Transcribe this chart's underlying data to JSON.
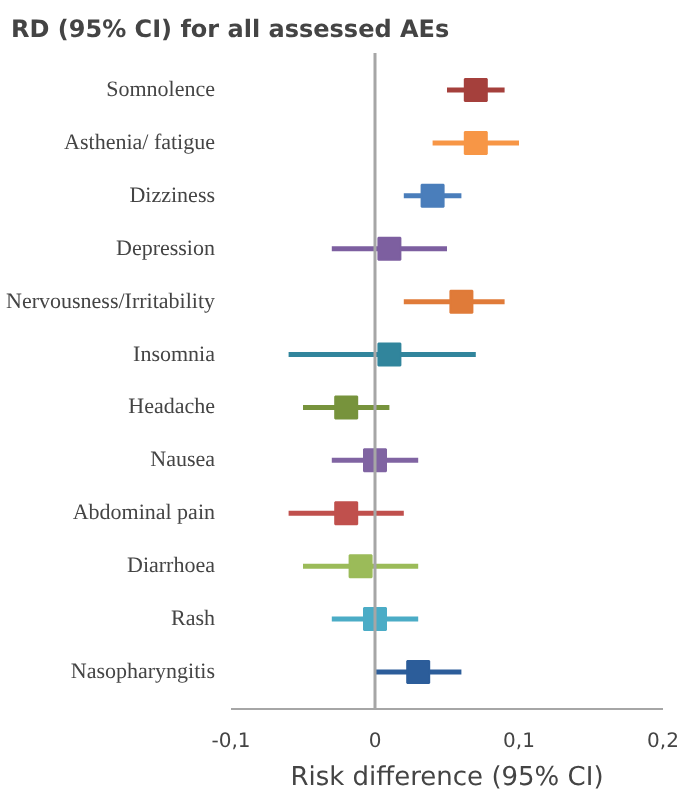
{
  "chart_data": {
    "type": "scatter",
    "orientation": "horizontal",
    "title": "RD (95% CI) for all assessed  AEs",
    "xlabel": "Risk difference (95% CI)",
    "categories": [
      "Somnolence",
      "Asthenia/ fatigue",
      "Dizziness",
      "Depression",
      "Nervousness/Irritability",
      "Insomnia",
      "Headache",
      "Nausea",
      "Abdominal pain",
      "Diarrhoea",
      "Rash",
      "Nasopharyngitis"
    ],
    "values": [
      0.07,
      0.07,
      0.04,
      0.01,
      0.06,
      0.01,
      -0.02,
      0,
      -0.02,
      -0.01,
      0,
      0.03
    ],
    "errors": [
      [
        0.05,
        0.09
      ],
      [
        0.04,
        0.1
      ],
      [
        0.02,
        0.06
      ],
      [
        -0.03,
        0.05
      ],
      [
        0.02,
        0.09
      ],
      [
        -0.06,
        0.07
      ],
      [
        -0.05,
        0.01
      ],
      [
        -0.03,
        0.03
      ],
      [
        -0.06,
        0.02
      ],
      [
        -0.05,
        0.03
      ],
      [
        -0.03,
        0.03
      ],
      [
        0,
        0.06
      ]
    ],
    "colors": [
      "#a5403c",
      "#f79646",
      "#4a7ebb",
      "#7d5fa0",
      "#e07b39",
      "#31859c",
      "#77933c",
      "#8064a2",
      "#c0504d",
      "#9bbb59",
      "#4bacc6",
      "#2c5d9a"
    ],
    "xlim": [
      -0.1,
      0.2
    ],
    "xticks": [
      {
        "value": -0.1,
        "label": "-0,1"
      },
      0,
      {
        "value": 0.1,
        "label": "0,1"
      },
      {
        "value": 0.2,
        "label": "0,2"
      }
    ],
    "ref_lines": [
      {
        "axis": "x",
        "value": 0,
        "color": "#a6a6a6"
      }
    ],
    "marker": "square",
    "grid": false
  }
}
